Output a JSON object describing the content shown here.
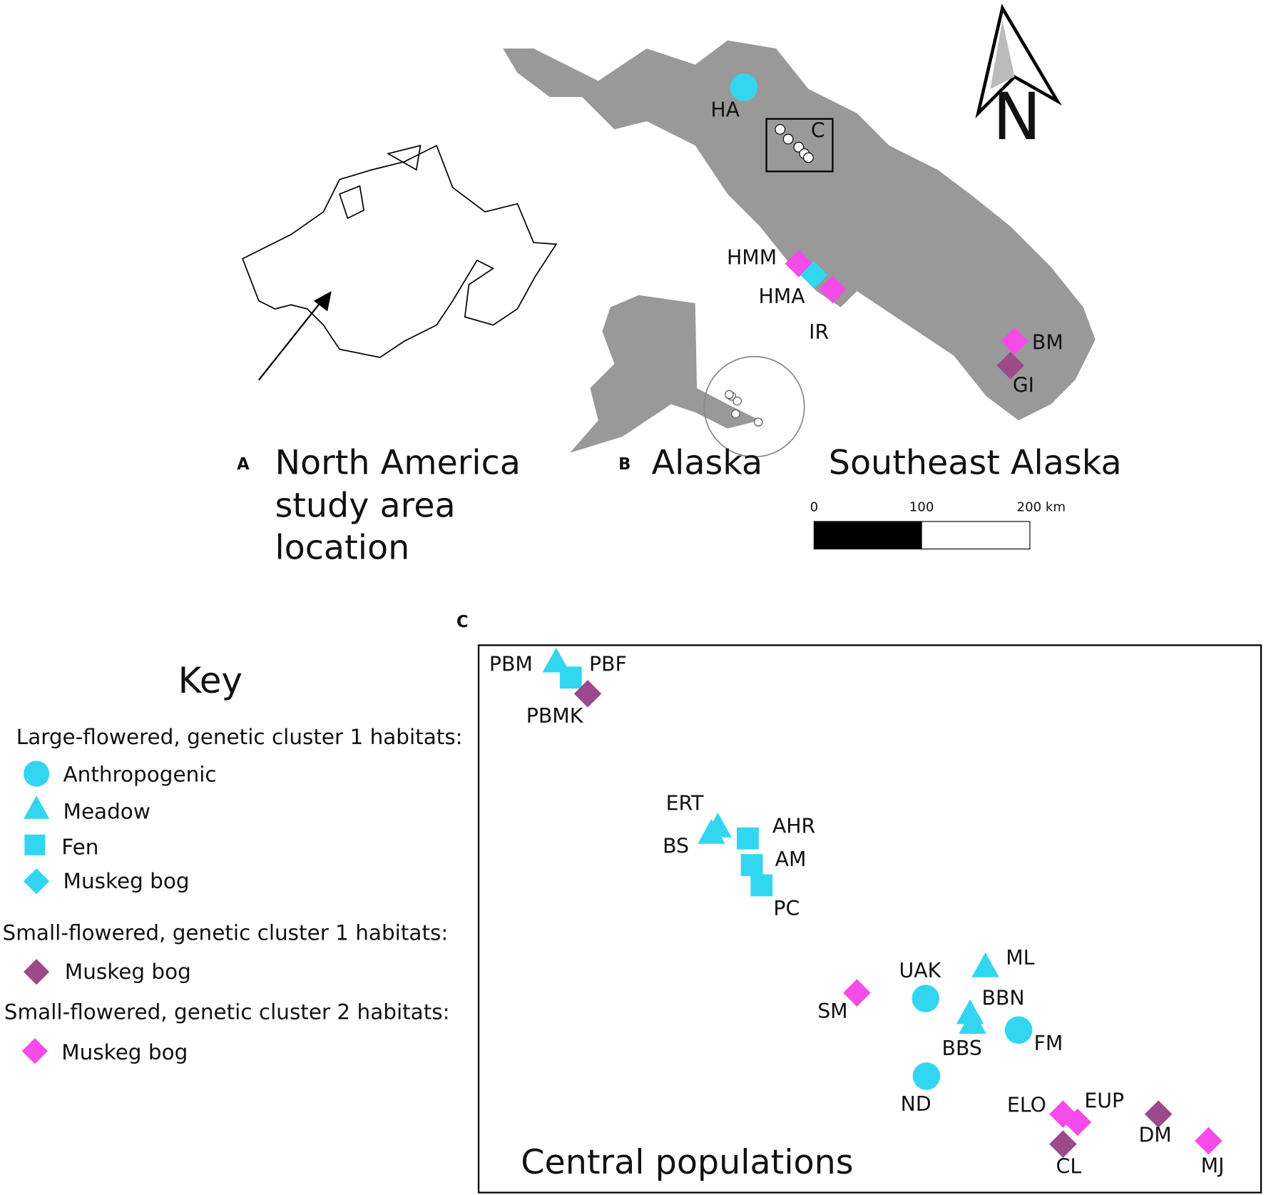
{
  "panel_a": {
    "letter": "A",
    "title_lines": [
      "North America",
      "study area",
      "location"
    ]
  },
  "panel_b": {
    "letter": "B",
    "inset_title": "Alaska",
    "title": "Southeast Alaska",
    "inset_box_label": "C",
    "north": "N",
    "sites": [
      "HA",
      "HMM",
      "HMA",
      "IR",
      "BM",
      "GI"
    ],
    "scale_bar": [
      "0",
      "100",
      "200 km"
    ]
  },
  "panel_c": {
    "letter": "C",
    "title": "Central populations",
    "sites": [
      "PBM",
      "PBF",
      "PBMK",
      "ERT",
      "BS",
      "AHR",
      "AM",
      "PC",
      "ML",
      "UAK",
      "SM",
      "BBN",
      "BBS",
      "FM",
      "ND",
      "ELO",
      "EUP",
      "DM",
      "CL",
      "MJ"
    ]
  },
  "key": {
    "title": "Key",
    "groups": [
      {
        "heading": "Large-flowered, genetic cluster 1 habitats:",
        "items": [
          "Anthropogenic",
          "Meadow",
          "Fen",
          "Muskeg bog"
        ]
      },
      {
        "heading": "Small-flowered, genetic cluster 1 habitats:",
        "items": [
          "Muskeg bog"
        ]
      },
      {
        "heading": "Small-flowered, genetic cluster 2 habitats:",
        "items": [
          "Muskeg bog"
        ]
      }
    ]
  }
}
